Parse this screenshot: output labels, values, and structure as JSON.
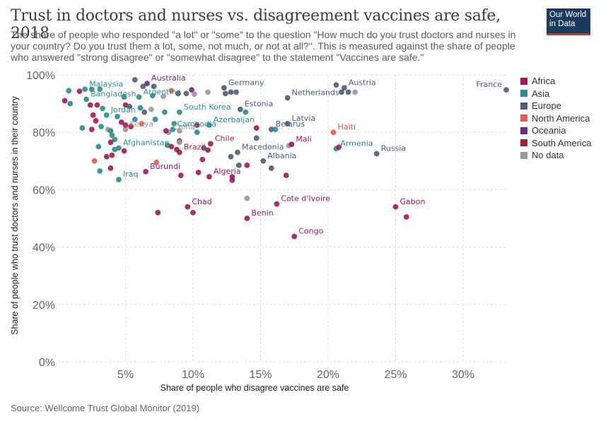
{
  "header": {
    "title": "Trust in doctors and nurses vs. disagreement vaccines are safe, 2018",
    "subtitle": "The share of people who responded \"a lot\" or \"some\" to the question \"How much do you trust doctors and nurses in your country? Do you trust them a lot, some, not much, or not at all?\". This is measured against the share of people who answered \"strong disagree\" or \"somewhat disagree\" to the statement \"Vaccines are safe.\"",
    "logo_line1": "Our World",
    "logo_line2": "in Data"
  },
  "footer": {
    "source": "Source: Wellcome Trust Global Monitor (2019)"
  },
  "chart_data": {
    "type": "scatter",
    "xlabel": "Share of people who disagree vaccines are safe",
    "ylabel": "Share of people who trust doctors and nurses in their country",
    "xlim": [
      0,
      33.3
    ],
    "ylim": [
      0,
      100
    ],
    "xticks": [
      5,
      10,
      15,
      20,
      25,
      30
    ],
    "yticks": [
      0,
      20,
      40,
      60,
      80,
      100
    ],
    "xtick_labels": [
      "5%",
      "10%",
      "15%",
      "20%",
      "25%",
      "30%"
    ],
    "ytick_labels": [
      "0%",
      "20%",
      "40%",
      "60%",
      "80%",
      "100%"
    ],
    "grid": true,
    "legend_position": "right",
    "groups": [
      {
        "name": "Africa",
        "color": "#a2185b"
      },
      {
        "name": "Asia",
        "color": "#2e8b8b"
      },
      {
        "name": "Europe",
        "color": "#4f5b77"
      },
      {
        "name": "North America",
        "color": "#e05c52"
      },
      {
        "name": "Oceania",
        "color": "#6d2a7d"
      },
      {
        "name": "South America",
        "color": "#992636"
      },
      {
        "name": "No data",
        "color": "#999999"
      }
    ],
    "points": [
      {
        "x": 33.2,
        "y": 94.8,
        "group": "Europe",
        "label": "France"
      },
      {
        "x": 21.2,
        "y": 95.5,
        "group": "Europe",
        "label": "Austria"
      },
      {
        "x": 20.6,
        "y": 96.5,
        "group": "Europe"
      },
      {
        "x": 21.0,
        "y": 94.0,
        "group": "Europe"
      },
      {
        "x": 21.5,
        "y": 94.0,
        "group": "Europe"
      },
      {
        "x": 22.0,
        "y": 94.0,
        "group": "No data"
      },
      {
        "x": 17.0,
        "y": 92.0,
        "group": "Europe",
        "label": "Netherlands"
      },
      {
        "x": 12.3,
        "y": 95.5,
        "group": "Europe",
        "label": "Germany"
      },
      {
        "x": 12.4,
        "y": 93.5,
        "group": "Europe"
      },
      {
        "x": 12.8,
        "y": 94.0,
        "group": "Europe"
      },
      {
        "x": 13.2,
        "y": 94.0,
        "group": "Europe"
      },
      {
        "x": 13.5,
        "y": 88.0,
        "group": "Europe",
        "label": "Estonia"
      },
      {
        "x": 13.9,
        "y": 87.0,
        "group": "Asia"
      },
      {
        "x": 17.0,
        "y": 83.0,
        "group": "Europe",
        "label": "Latvia"
      },
      {
        "x": 15.8,
        "y": 81.0,
        "group": "Europe",
        "label": "Belarus"
      },
      {
        "x": 16.1,
        "y": 81.0,
        "group": "Asia"
      },
      {
        "x": 14.7,
        "y": 81.5,
        "group": "Africa"
      },
      {
        "x": 14.7,
        "y": 78.0,
        "group": "Europe"
      },
      {
        "x": 17.1,
        "y": 75.3,
        "group": "No data"
      },
      {
        "x": 17.3,
        "y": 75.8,
        "group": "Africa",
        "label": "Mali"
      },
      {
        "x": 20.4,
        "y": 80.0,
        "group": "North America",
        "label": "Haiti"
      },
      {
        "x": 20.6,
        "y": 74.3,
        "group": "Asia",
        "label": "Armenia"
      },
      {
        "x": 20.8,
        "y": 74.8,
        "group": "Africa"
      },
      {
        "x": 23.6,
        "y": 72.5,
        "group": "Europe",
        "label": "Russia"
      },
      {
        "x": 13.3,
        "y": 73.0,
        "group": "Europe",
        "label": "Macedonia"
      },
      {
        "x": 12.8,
        "y": 71.5,
        "group": "Europe"
      },
      {
        "x": 13.4,
        "y": 68.5,
        "group": "Europe"
      },
      {
        "x": 14.0,
        "y": 68.5,
        "group": "Africa"
      },
      {
        "x": 15.2,
        "y": 70.0,
        "group": "Europe",
        "label": "Albania"
      },
      {
        "x": 15.8,
        "y": 67.5,
        "group": "Europe"
      },
      {
        "x": 16.9,
        "y": 65.0,
        "group": "Africa"
      },
      {
        "x": 12.9,
        "y": 64.5,
        "group": "Africa"
      },
      {
        "x": 12.9,
        "y": 63.3,
        "group": "Africa"
      },
      {
        "x": 14.0,
        "y": 57.0,
        "group": "No data"
      },
      {
        "x": 16.2,
        "y": 55.0,
        "group": "Africa",
        "label": "Cote d'Ivoire"
      },
      {
        "x": 14.0,
        "y": 50.0,
        "group": "Africa",
        "label": "Benin"
      },
      {
        "x": 17.5,
        "y": 43.7,
        "group": "Africa",
        "label": "Congo"
      },
      {
        "x": 25.0,
        "y": 54.0,
        "group": "Africa",
        "label": "Gabon"
      },
      {
        "x": 25.8,
        "y": 50.5,
        "group": "Africa"
      },
      {
        "x": 11.3,
        "y": 76.0,
        "group": "South America",
        "label": "Chile"
      },
      {
        "x": 11.1,
        "y": 73.8,
        "group": "Africa"
      },
      {
        "x": 10.8,
        "y": 74.5,
        "group": "Europe"
      },
      {
        "x": 11.2,
        "y": 64.5,
        "group": "Africa",
        "label": "Algeria"
      },
      {
        "x": 10.4,
        "y": 66.0,
        "group": "Africa"
      },
      {
        "x": 10.7,
        "y": 70.5,
        "group": "Africa"
      },
      {
        "x": 9.6,
        "y": 54.0,
        "group": "Africa",
        "label": "Chad"
      },
      {
        "x": 10.0,
        "y": 52.0,
        "group": "Africa"
      },
      {
        "x": 7.4,
        "y": 52.0,
        "group": "Africa"
      },
      {
        "x": 9.1,
        "y": 65.0,
        "group": "Africa"
      },
      {
        "x": 6.5,
        "y": 66.3,
        "group": "Africa",
        "label": "Burundi"
      },
      {
        "x": 7.3,
        "y": 69.5,
        "group": "North America"
      },
      {
        "x": 9.0,
        "y": 73.0,
        "group": "South America",
        "label": "Brazil"
      },
      {
        "x": 9.0,
        "y": 77.0,
        "group": "South America"
      },
      {
        "x": 8.1,
        "y": 75.5,
        "group": "Asia"
      },
      {
        "x": 8.4,
        "y": 75.0,
        "group": "South America"
      },
      {
        "x": 8.8,
        "y": 74.0,
        "group": "Africa"
      },
      {
        "x": 9.0,
        "y": 76.5,
        "group": "No data"
      },
      {
        "x": 8.2,
        "y": 80.0,
        "group": "No data",
        "label": "China"
      },
      {
        "x": 8.0,
        "y": 80.5,
        "group": "Africa"
      },
      {
        "x": 8.5,
        "y": 81.0,
        "group": "Asia",
        "label": "Cambodia"
      },
      {
        "x": 9.0,
        "y": 80.5,
        "group": "No data"
      },
      {
        "x": 10.3,
        "y": 82.5,
        "group": "Africa"
      },
      {
        "x": 10.3,
        "y": 80.0,
        "group": "Asia"
      },
      {
        "x": 11.2,
        "y": 82.5,
        "group": "Asia",
        "label": "Azerbaijan"
      },
      {
        "x": 9.0,
        "y": 87.0,
        "group": "Asia",
        "label": "South Korea"
      },
      {
        "x": 8.6,
        "y": 83.0,
        "group": "Asia"
      },
      {
        "x": 7.9,
        "y": 87.0,
        "group": "Asia"
      },
      {
        "x": 7.2,
        "y": 84.5,
        "group": "Asia"
      },
      {
        "x": 6.4,
        "y": 87.0,
        "group": "Europe"
      },
      {
        "x": 6.9,
        "y": 88.0,
        "group": "No data"
      },
      {
        "x": 6.1,
        "y": 88.5,
        "group": "Asia"
      },
      {
        "x": 5.7,
        "y": 84.5,
        "group": "Asia"
      },
      {
        "x": 6.2,
        "y": 83.0,
        "group": "North America"
      },
      {
        "x": 5.4,
        "y": 82.0,
        "group": "South America"
      },
      {
        "x": 5.0,
        "y": 81.0,
        "group": "No data",
        "label": "Kenya"
      },
      {
        "x": 5.0,
        "y": 82.5,
        "group": "Africa"
      },
      {
        "x": 4.7,
        "y": 83.5,
        "group": "Africa"
      },
      {
        "x": 6.0,
        "y": 92.3,
        "group": "Asia",
        "label": "Argentina"
      },
      {
        "x": 5.0,
        "y": 89.5,
        "group": "South America"
      },
      {
        "x": 5.3,
        "y": 89.0,
        "group": "Europe"
      },
      {
        "x": 4.9,
        "y": 92.3,
        "group": "Asia"
      },
      {
        "x": 5.7,
        "y": 98.3,
        "group": "Europe"
      },
      {
        "x": 6.3,
        "y": 96.0,
        "group": "Europe"
      },
      {
        "x": 6.6,
        "y": 97.0,
        "group": "Oceania",
        "label": "Australia"
      },
      {
        "x": 7.1,
        "y": 96.0,
        "group": "Europe"
      },
      {
        "x": 7.0,
        "y": 92.8,
        "group": "Asia"
      },
      {
        "x": 7.8,
        "y": 92.5,
        "group": "No data"
      },
      {
        "x": 8.4,
        "y": 94.5,
        "group": "North America"
      },
      {
        "x": 8.9,
        "y": 93.5,
        "group": "Europe"
      },
      {
        "x": 9.5,
        "y": 93.5,
        "group": "Europe"
      },
      {
        "x": 9.9,
        "y": 94.8,
        "group": "Oceania"
      },
      {
        "x": 10.1,
        "y": 93.3,
        "group": "No data"
      },
      {
        "x": 11.1,
        "y": 94.0,
        "group": "No data"
      },
      {
        "x": 2.0,
        "y": 95.0,
        "group": "Asia",
        "label": "Malaysia"
      },
      {
        "x": 2.5,
        "y": 95.0,
        "group": "Asia"
      },
      {
        "x": 3.1,
        "y": 95.0,
        "group": "Asia"
      },
      {
        "x": 0.8,
        "y": 94.5,
        "group": "Asia"
      },
      {
        "x": 1.6,
        "y": 94.3,
        "group": "Africa"
      },
      {
        "x": 2.1,
        "y": 91.5,
        "group": "Asia",
        "label": "Bangladesh"
      },
      {
        "x": 0.5,
        "y": 91.0,
        "group": "Africa"
      },
      {
        "x": 0.9,
        "y": 90.0,
        "group": "Asia"
      },
      {
        "x": 2.4,
        "y": 89.5,
        "group": "Africa"
      },
      {
        "x": 2.9,
        "y": 89.5,
        "group": "Africa"
      },
      {
        "x": 3.3,
        "y": 88.3,
        "group": "Asia"
      },
      {
        "x": 2.6,
        "y": 86.0,
        "group": "Africa"
      },
      {
        "x": 3.6,
        "y": 86.0,
        "group": "Asia",
        "label": "Jordan"
      },
      {
        "x": 4.4,
        "y": 85.5,
        "group": "Asia"
      },
      {
        "x": 2.8,
        "y": 84.0,
        "group": "Africa"
      },
      {
        "x": 3.2,
        "y": 82.0,
        "group": "Asia"
      },
      {
        "x": 1.8,
        "y": 81.5,
        "group": "Asia"
      },
      {
        "x": 2.5,
        "y": 81.0,
        "group": "Africa"
      },
      {
        "x": 3.7,
        "y": 81.0,
        "group": "No data"
      },
      {
        "x": 3.9,
        "y": 80.5,
        "group": "Asia"
      },
      {
        "x": 4.0,
        "y": 79.0,
        "group": "Asia"
      },
      {
        "x": 4.2,
        "y": 77.5,
        "group": "Asia"
      },
      {
        "x": 3.9,
        "y": 76.5,
        "group": "Africa"
      },
      {
        "x": 4.5,
        "y": 74.5,
        "group": "Asia",
        "label": "Afghanistan"
      },
      {
        "x": 4.2,
        "y": 74.0,
        "group": "Asia"
      },
      {
        "x": 4.9,
        "y": 73.5,
        "group": "Africa"
      },
      {
        "x": 3.0,
        "y": 75.0,
        "group": "Asia"
      },
      {
        "x": 4.0,
        "y": 72.0,
        "group": "South America"
      },
      {
        "x": 3.6,
        "y": 71.5,
        "group": "Africa"
      },
      {
        "x": 2.7,
        "y": 70.0,
        "group": "North America"
      },
      {
        "x": 3.9,
        "y": 67.5,
        "group": "Africa"
      },
      {
        "x": 3.1,
        "y": 66.5,
        "group": "Asia"
      },
      {
        "x": 4.5,
        "y": 63.5,
        "group": "Asia",
        "label": "Iraq"
      }
    ]
  }
}
